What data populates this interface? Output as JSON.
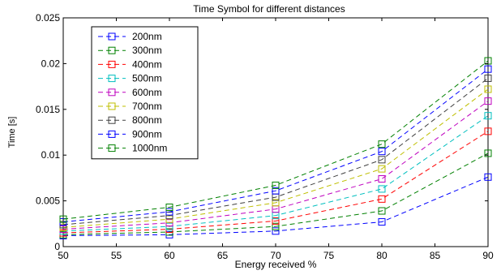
{
  "chart_data": {
    "type": "line",
    "title": "Time Symbol for different distances",
    "xlabel": "Energy received %",
    "ylabel": "Time [s]",
    "x": [
      50,
      60,
      70,
      80,
      90
    ],
    "xlim": [
      50,
      90
    ],
    "ylim": [
      0,
      0.025
    ],
    "xticks": [
      50,
      55,
      60,
      65,
      70,
      75,
      80,
      85,
      90
    ],
    "yticks": [
      0,
      0.005,
      0.01,
      0.015,
      0.02,
      0.025
    ],
    "xtick_labels": [
      "50",
      "55",
      "60",
      "65",
      "70",
      "75",
      "80",
      "85",
      "90"
    ],
    "ytick_labels": [
      "0",
      "0.005",
      "0.01",
      "0.015",
      "0.02",
      "0.025"
    ],
    "grid": false,
    "legend_position": "top-left",
    "marker": "square",
    "line_style": "dashed",
    "series": [
      {
        "name": "200nm",
        "color": "#0000ff",
        "values": [
          0.0012,
          0.0013,
          0.0017,
          0.0027,
          0.0076
        ]
      },
      {
        "name": "300nm",
        "color": "#008000",
        "values": [
          0.0013,
          0.0016,
          0.0022,
          0.0039,
          0.0102
        ]
      },
      {
        "name": "400nm",
        "color": "#ff0000",
        "values": [
          0.0015,
          0.0019,
          0.0028,
          0.0052,
          0.0126
        ]
      },
      {
        "name": "500nm",
        "color": "#00bfbf",
        "values": [
          0.0017,
          0.0022,
          0.0034,
          0.0063,
          0.0143
        ]
      },
      {
        "name": "600nm",
        "color": "#bf00bf",
        "values": [
          0.0019,
          0.0026,
          0.0041,
          0.0074,
          0.0159
        ]
      },
      {
        "name": "700nm",
        "color": "#bfbf00",
        "values": [
          0.0021,
          0.003,
          0.0048,
          0.0085,
          0.0172
        ]
      },
      {
        "name": "800nm",
        "color": "#404040",
        "values": [
          0.0024,
          0.0034,
          0.0054,
          0.0095,
          0.0184
        ]
      },
      {
        "name": "900nm",
        "color": "#0000ff",
        "values": [
          0.0027,
          0.0038,
          0.0061,
          0.0104,
          0.0194
        ]
      },
      {
        "name": "1000nm",
        "color": "#008000",
        "values": [
          0.003,
          0.0043,
          0.0067,
          0.0112,
          0.0203
        ]
      }
    ]
  }
}
